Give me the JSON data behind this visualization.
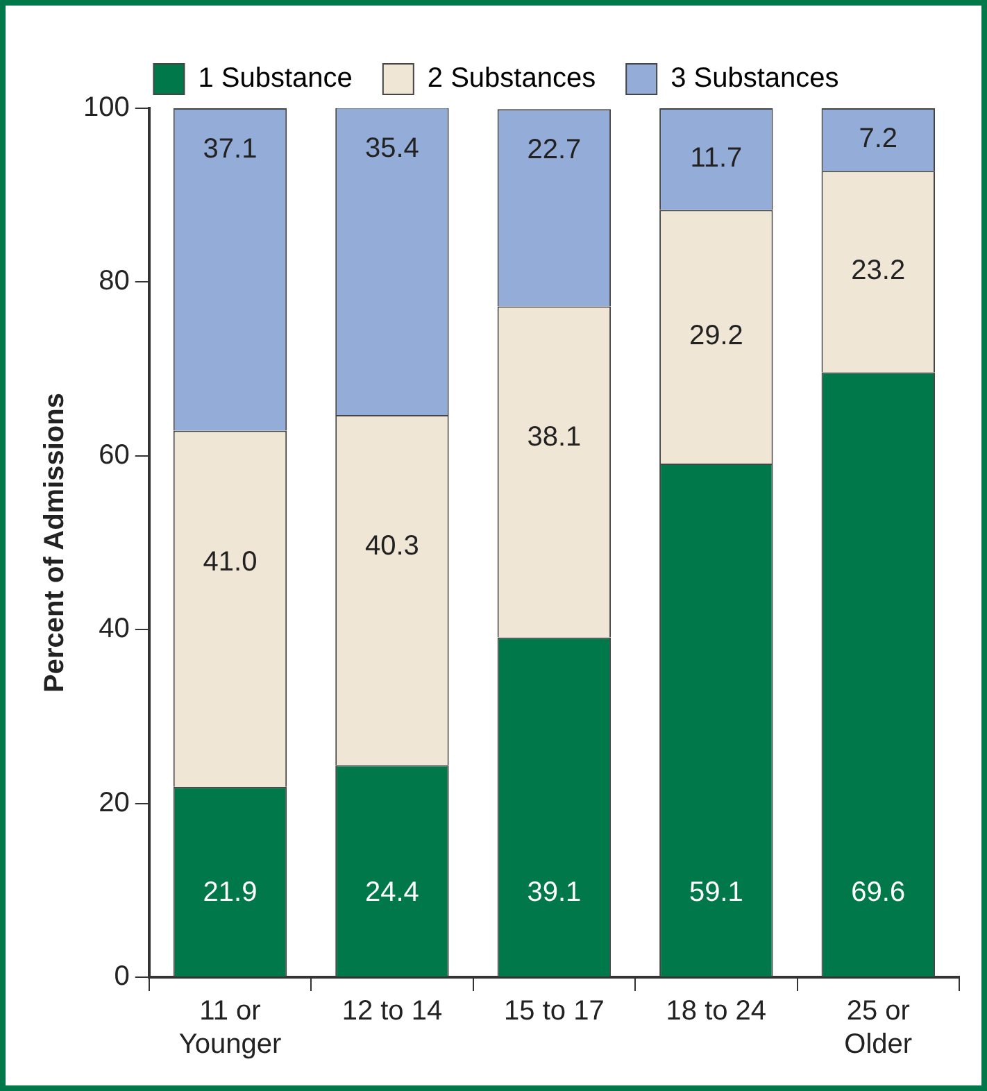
{
  "chart_data": {
    "type": "bar",
    "stacked": true,
    "ylabel": "Percent of Admissions",
    "categories": [
      "11 or\nYounger",
      "12 to 14",
      "15 to 17",
      "18 to 24",
      "25 or\nOlder"
    ],
    "series": [
      {
        "name": "1 Substance",
        "color": "#00784a",
        "values": [
          21.9,
          24.4,
          39.1,
          59.1,
          69.6
        ],
        "value_labels": [
          "21.9",
          "24.4",
          "39.1",
          "59.1",
          "69.6"
        ]
      },
      {
        "name": "2 Substances",
        "color": "#f0e6d6",
        "values": [
          41.0,
          40.3,
          38.1,
          29.2,
          23.2
        ],
        "value_labels": [
          "41.0",
          "40.3",
          "38.1",
          "29.2",
          "23.2"
        ]
      },
      {
        "name": "3 Substances",
        "color": "#93acd8",
        "values": [
          37.1,
          35.4,
          22.7,
          11.7,
          7.2
        ],
        "value_labels": [
          "37.1",
          "35.4",
          "22.7",
          "11.7",
          "7.2"
        ]
      }
    ],
    "ylim": [
      0,
      100
    ],
    "yticks": [
      0,
      20,
      40,
      60,
      80,
      100
    ],
    "grid": false,
    "legend": "top"
  }
}
